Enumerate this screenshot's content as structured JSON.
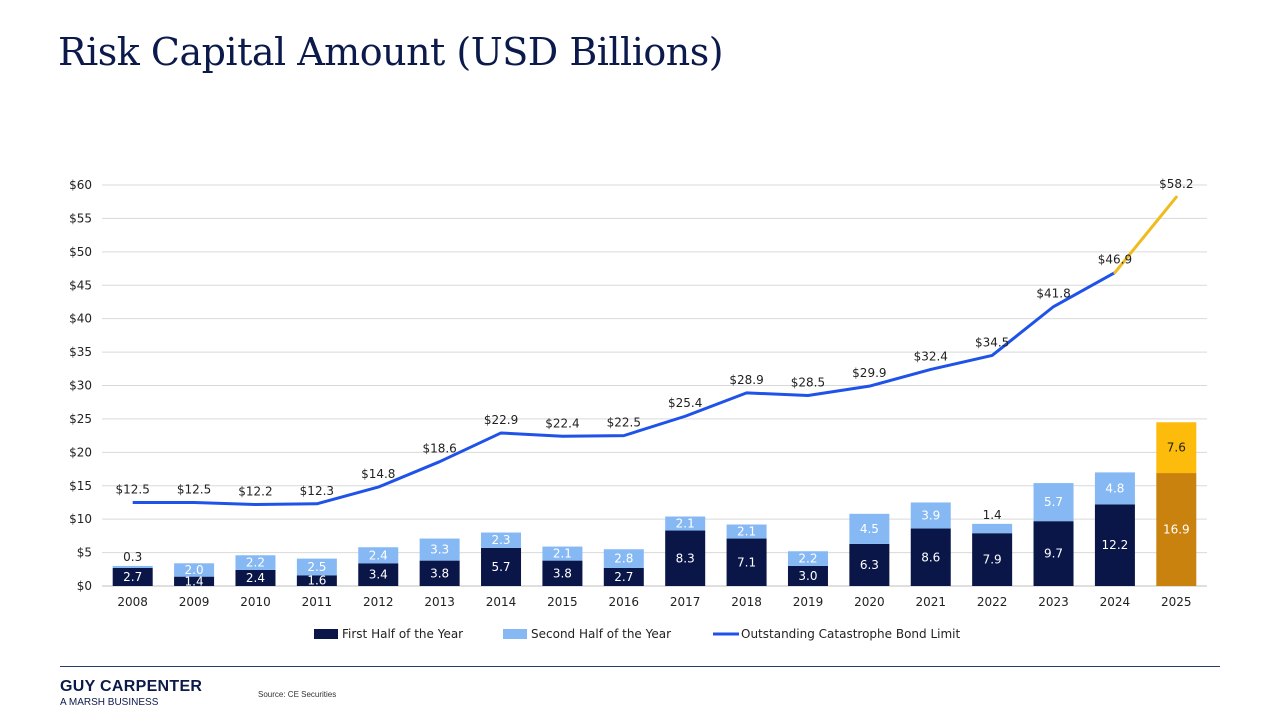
{
  "page": {
    "title": "Risk Capital Amount (USD Billions)",
    "brand": "GUY CARPENTER",
    "brand_sub": "A MARSH BUSINESS",
    "source": "Source: CE Securities"
  },
  "colors": {
    "first_half": "#0a1648",
    "second_half": "#86b9f4",
    "line": "#1f52e8",
    "projection_line": "#f0bb1e",
    "proj_first": "#c9820e",
    "proj_second": "#fdbb0c",
    "grid": "#d9d9d9",
    "title": "#0c1a4b"
  },
  "chart_data": {
    "type": "bar+line",
    "title": "Risk Capital Amount (USD Billions)",
    "categories": [
      "2008",
      "2009",
      "2010",
      "2011",
      "2012",
      "2013",
      "2014",
      "2015",
      "2016",
      "2017",
      "2018",
      "2019",
      "2020",
      "2021",
      "2022",
      "2023",
      "2024",
      "2025"
    ],
    "series": [
      {
        "name": "First Half of the Year",
        "kind": "stacked-bar",
        "values": [
          2.7,
          1.4,
          2.4,
          1.6,
          3.4,
          3.8,
          5.7,
          3.8,
          2.7,
          8.3,
          7.1,
          3.0,
          6.3,
          8.6,
          7.9,
          9.7,
          12.2,
          16.9
        ],
        "labels": [
          "2.7",
          "1.4",
          "2.4",
          "1.6",
          "3.4",
          "3.8",
          "5.7",
          "3.8",
          "2.7",
          "8.3",
          "7.1",
          "3.0",
          "6.3",
          "8.6",
          "7.9",
          "9.7",
          "12.2",
          "16.9"
        ]
      },
      {
        "name": "Second Half of the Year",
        "kind": "stacked-bar",
        "values": [
          0.3,
          2.0,
          2.2,
          2.5,
          2.4,
          3.3,
          2.3,
          2.1,
          2.8,
          2.1,
          2.1,
          2.2,
          4.5,
          3.9,
          1.4,
          5.7,
          4.8,
          7.6
        ],
        "labels": [
          "0.3",
          "2.0",
          "2.2",
          "2.5",
          "2.4",
          "3.3",
          "2.3",
          "2.1",
          "2.8",
          "2.1",
          "2.1",
          "2.2",
          "4.5",
          "3.9",
          "1.4",
          "5.7",
          "4.8",
          "7.6"
        ]
      },
      {
        "name": "Outstanding Catastrophe Bond Limit",
        "kind": "line",
        "values": [
          12.5,
          12.5,
          12.2,
          12.3,
          14.8,
          18.6,
          22.9,
          22.4,
          22.5,
          25.4,
          28.9,
          28.5,
          29.9,
          32.4,
          34.5,
          41.8,
          46.9,
          58.2
        ],
        "labels": [
          "$12.5",
          "$12.5",
          "$12.2",
          "$12.3",
          "$14.8",
          "$18.6",
          "$22.9",
          "$22.4",
          "$22.5",
          "$25.4",
          "$28.9",
          "$28.5",
          "$29.9",
          "$32.4",
          "$34.5",
          "$41.8",
          "$46.9",
          "$58.2"
        ]
      }
    ],
    "projection_category": "2025",
    "yticks": [
      0,
      5,
      10,
      15,
      20,
      25,
      30,
      35,
      40,
      45,
      50,
      55,
      60
    ],
    "ytick_labels": [
      "$0",
      "$5",
      "$10",
      "$15",
      "$20",
      "$25",
      "$30",
      "$35",
      "$40",
      "$45",
      "$50",
      "$55",
      "$60"
    ],
    "ylim": [
      0,
      60
    ],
    "grid": true,
    "legend": {
      "position": "bottom-center",
      "items": [
        "First Half of the Year",
        "Second Half of the Year",
        "Outstanding Catastrophe Bond Limit"
      ]
    }
  }
}
